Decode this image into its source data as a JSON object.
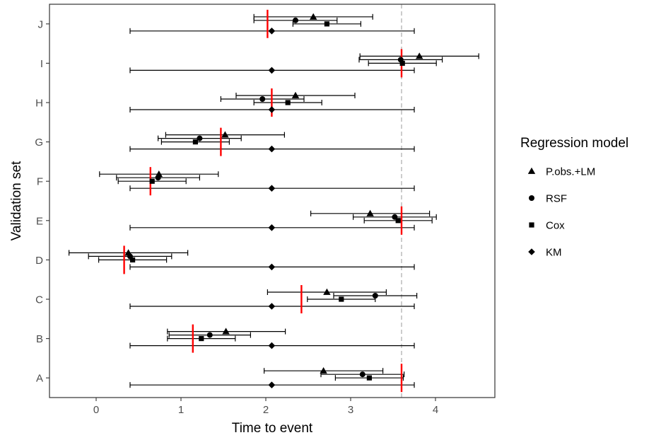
{
  "chart_data": {
    "type": "forest",
    "xlabel": "Time to event",
    "ylabel": "Validation set",
    "xlim": [
      -0.55,
      4.7
    ],
    "x_ticks": [
      0,
      1,
      2,
      3,
      4
    ],
    "categories": [
      "A",
      "B",
      "C",
      "D",
      "E",
      "F",
      "G",
      "H",
      "I",
      "J"
    ],
    "grid": false,
    "legend": {
      "title": "Regression model",
      "position": "right",
      "entries": [
        {
          "name": "P.obs.+LM",
          "shape": "triangle"
        },
        {
          "name": "RSF",
          "shape": "circle"
        },
        {
          "name": "Cox",
          "shape": "square"
        },
        {
          "name": "KM",
          "shape": "diamond"
        }
      ]
    },
    "reference_line": {
      "x": 3.6,
      "style": "dashed",
      "color": "#bfbfbf"
    },
    "observed_marks": {
      "color": "#ff0000",
      "values": {
        "A": 3.6,
        "B": 1.14,
        "C": 2.42,
        "D": 0.33,
        "E": 3.6,
        "F": 0.64,
        "G": 1.47,
        "H": 2.07,
        "I": 3.6,
        "J": 2.02
      }
    },
    "series": [
      {
        "name": "P.obs.+LM",
        "shape": "triangle",
        "points": [
          {
            "category": "A",
            "estimate": 2.68,
            "lower": 1.98,
            "upper": 3.38
          },
          {
            "category": "B",
            "estimate": 1.53,
            "lower": 0.84,
            "upper": 2.23
          },
          {
            "category": "C",
            "estimate": 2.72,
            "lower": 2.02,
            "upper": 3.42
          },
          {
            "category": "D",
            "estimate": 0.38,
            "lower": -0.32,
            "upper": 1.08
          },
          {
            "category": "E",
            "estimate": 3.23,
            "lower": 2.53,
            "upper": 3.93
          },
          {
            "category": "F",
            "estimate": 0.74,
            "lower": 0.04,
            "upper": 1.44
          },
          {
            "category": "G",
            "estimate": 1.52,
            "lower": 0.82,
            "upper": 2.22
          },
          {
            "category": "H",
            "estimate": 2.35,
            "lower": 1.65,
            "upper": 3.05
          },
          {
            "category": "I",
            "estimate": 3.81,
            "lower": 3.11,
            "upper": 4.51
          },
          {
            "category": "J",
            "estimate": 2.56,
            "lower": 1.86,
            "upper": 3.26
          }
        ]
      },
      {
        "name": "RSF",
        "shape": "circle",
        "points": [
          {
            "category": "A",
            "estimate": 3.14,
            "lower": 2.65,
            "upper": 3.63
          },
          {
            "category": "B",
            "estimate": 1.34,
            "lower": 0.86,
            "upper": 1.82
          },
          {
            "category": "C",
            "estimate": 3.29,
            "lower": 2.8,
            "upper": 3.78
          },
          {
            "category": "D",
            "estimate": 0.4,
            "lower": -0.09,
            "upper": 0.89
          },
          {
            "category": "E",
            "estimate": 3.52,
            "lower": 3.03,
            "upper": 4.01
          },
          {
            "category": "F",
            "estimate": 0.73,
            "lower": 0.24,
            "upper": 1.22
          },
          {
            "category": "G",
            "estimate": 1.22,
            "lower": 0.73,
            "upper": 1.71
          },
          {
            "category": "H",
            "estimate": 1.96,
            "lower": 1.47,
            "upper": 2.45
          },
          {
            "category": "I",
            "estimate": 3.59,
            "lower": 3.1,
            "upper": 4.08
          },
          {
            "category": "J",
            "estimate": 2.35,
            "lower": 1.86,
            "upper": 2.84
          }
        ]
      },
      {
        "name": "Cox",
        "shape": "square",
        "points": [
          {
            "category": "A",
            "estimate": 3.22,
            "lower": 2.82,
            "upper": 3.62
          },
          {
            "category": "B",
            "estimate": 1.24,
            "lower": 0.84,
            "upper": 1.64
          },
          {
            "category": "C",
            "estimate": 2.89,
            "lower": 2.49,
            "upper": 3.29
          },
          {
            "category": "D",
            "estimate": 0.43,
            "lower": 0.03,
            "upper": 0.83
          },
          {
            "category": "E",
            "estimate": 3.56,
            "lower": 3.16,
            "upper": 3.96
          },
          {
            "category": "F",
            "estimate": 0.66,
            "lower": 0.26,
            "upper": 1.06
          },
          {
            "category": "G",
            "estimate": 1.17,
            "lower": 0.77,
            "upper": 1.57
          },
          {
            "category": "H",
            "estimate": 2.26,
            "lower": 1.86,
            "upper": 2.66
          },
          {
            "category": "I",
            "estimate": 3.61,
            "lower": 3.21,
            "upper": 4.01
          },
          {
            "category": "J",
            "estimate": 2.72,
            "lower": 2.32,
            "upper": 3.12
          }
        ]
      },
      {
        "name": "KM",
        "shape": "diamond",
        "points": [
          {
            "category": "A",
            "estimate": 2.07,
            "lower": 0.4,
            "upper": 3.75
          },
          {
            "category": "B",
            "estimate": 2.07,
            "lower": 0.4,
            "upper": 3.75
          },
          {
            "category": "C",
            "estimate": 2.07,
            "lower": 0.4,
            "upper": 3.75
          },
          {
            "category": "D",
            "estimate": 2.07,
            "lower": 0.4,
            "upper": 3.75
          },
          {
            "category": "E",
            "estimate": 2.07,
            "lower": 0.4,
            "upper": 3.75
          },
          {
            "category": "F",
            "estimate": 2.07,
            "lower": 0.4,
            "upper": 3.75
          },
          {
            "category": "G",
            "estimate": 2.07,
            "lower": 0.4,
            "upper": 3.75
          },
          {
            "category": "H",
            "estimate": 2.07,
            "lower": 0.4,
            "upper": 3.75
          },
          {
            "category": "I",
            "estimate": 2.07,
            "lower": 0.4,
            "upper": 3.75
          },
          {
            "category": "J",
            "estimate": 2.07,
            "lower": 0.4,
            "upper": 3.75
          }
        ]
      }
    ]
  }
}
